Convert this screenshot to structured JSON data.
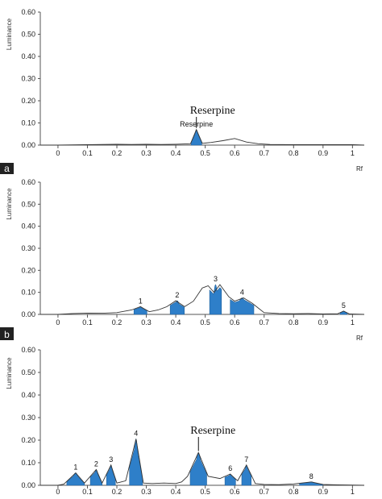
{
  "chart_data": [
    {
      "type": "area",
      "panel_label": "a",
      "xlabel": "Rf",
      "ylabel": "Luminance",
      "xlim": [
        -0.06,
        1.04
      ],
      "ylim": [
        0,
        0.6
      ],
      "x_ticks": [
        "0",
        "0.1",
        "0.2",
        "0.3",
        "0.4",
        "0.5",
        "0.6",
        "0.7",
        "0.8",
        "0.9",
        "1"
      ],
      "y_ticks": [
        "0.00",
        "0.10",
        "0.20",
        "0.30",
        "0.40",
        "0.50",
        "0.60"
      ],
      "grid": false,
      "trace": [
        [
          -0.06,
          0.0
        ],
        [
          0.0,
          0.0
        ],
        [
          0.1,
          0.002
        ],
        [
          0.15,
          0.003
        ],
        [
          0.2,
          0.004
        ],
        [
          0.25,
          0.003
        ],
        [
          0.3,
          0.004
        ],
        [
          0.35,
          0.003
        ],
        [
          0.4,
          0.004
        ],
        [
          0.45,
          0.006
        ],
        [
          0.47,
          0.07
        ],
        [
          0.49,
          0.008
        ],
        [
          0.52,
          0.012
        ],
        [
          0.56,
          0.02
        ],
        [
          0.6,
          0.03
        ],
        [
          0.64,
          0.014
        ],
        [
          0.68,
          0.006
        ],
        [
          0.72,
          0.003
        ],
        [
          0.8,
          0.002
        ],
        [
          0.9,
          0.002
        ],
        [
          1.0,
          0.002
        ],
        [
          1.04,
          0.0
        ]
      ],
      "peaks": [
        {
          "rf": 0.47,
          "height": 0.07,
          "halfwidth": 0.018,
          "label": "Reserpine"
        }
      ],
      "annotation": "Reserpine"
    },
    {
      "type": "area",
      "panel_label": "b",
      "xlabel": "Rf",
      "ylabel": "Luminance",
      "xlim": [
        -0.06,
        1.04
      ],
      "ylim": [
        0,
        0.6
      ],
      "x_ticks": [
        "0",
        "0.1",
        "0.2",
        "0.3",
        "0.4",
        "0.5",
        "0.6",
        "0.7",
        "0.8",
        "0.9",
        "1"
      ],
      "y_ticks": [
        "0.00",
        "0.10",
        "0.20",
        "0.30",
        "0.40",
        "0.50",
        "0.60"
      ],
      "grid": false,
      "trace": [
        [
          -0.06,
          0.0
        ],
        [
          0.0,
          0.0
        ],
        [
          0.05,
          0.004
        ],
        [
          0.1,
          0.006
        ],
        [
          0.15,
          0.005
        ],
        [
          0.2,
          0.008
        ],
        [
          0.25,
          0.02
        ],
        [
          0.28,
          0.035
        ],
        [
          0.31,
          0.012
        ],
        [
          0.34,
          0.02
        ],
        [
          0.37,
          0.035
        ],
        [
          0.4,
          0.062
        ],
        [
          0.43,
          0.035
        ],
        [
          0.46,
          0.06
        ],
        [
          0.49,
          0.12
        ],
        [
          0.51,
          0.13
        ],
        [
          0.53,
          0.1
        ],
        [
          0.55,
          0.135
        ],
        [
          0.58,
          0.08
        ],
        [
          0.6,
          0.06
        ],
        [
          0.63,
          0.075
        ],
        [
          0.66,
          0.05
        ],
        [
          0.7,
          0.008
        ],
        [
          0.75,
          0.004
        ],
        [
          0.8,
          0.003
        ],
        [
          0.85,
          0.004
        ],
        [
          0.9,
          0.002
        ],
        [
          0.95,
          0.003
        ],
        [
          0.97,
          0.015
        ],
        [
          0.99,
          0.002
        ],
        [
          1.04,
          0.0
        ]
      ],
      "peaks": [
        {
          "rf": 0.28,
          "height": 0.035,
          "halfwidth": 0.022,
          "label": "1"
        },
        {
          "rf": 0.405,
          "height": 0.062,
          "halfwidth": 0.024,
          "label": "2"
        },
        {
          "rf": 0.535,
          "height": 0.135,
          "halfwidth": 0.02,
          "label": "3"
        },
        {
          "rf": 0.625,
          "height": 0.075,
          "halfwidth": 0.04,
          "label": "4"
        },
        {
          "rf": 0.97,
          "height": 0.015,
          "halfwidth": 0.012,
          "label": "5"
        }
      ],
      "annotation": ""
    },
    {
      "type": "area",
      "panel_label": "",
      "xlabel": "",
      "ylabel": "Luminance",
      "xlim": [
        -0.06,
        1.04
      ],
      "ylim": [
        0,
        0.6
      ],
      "x_ticks": [
        "0",
        "0.1",
        "0.2",
        "0.3",
        "0.4",
        "0.5",
        "0.6",
        "0.7",
        "0.8",
        "0.9",
        "1"
      ],
      "y_ticks": [
        "0.00",
        "0.10",
        "0.20",
        "0.30",
        "0.40",
        "0.50",
        "0.60"
      ],
      "grid": false,
      "trace": [
        [
          -0.06,
          0.0
        ],
        [
          0.0,
          0.0
        ],
        [
          0.02,
          0.005
        ],
        [
          0.06,
          0.055
        ],
        [
          0.09,
          0.01
        ],
        [
          0.13,
          0.07
        ],
        [
          0.15,
          0.01
        ],
        [
          0.18,
          0.09
        ],
        [
          0.2,
          0.01
        ],
        [
          0.23,
          0.02
        ],
        [
          0.265,
          0.205
        ],
        [
          0.29,
          0.01
        ],
        [
          0.32,
          0.008
        ],
        [
          0.36,
          0.01
        ],
        [
          0.4,
          0.008
        ],
        [
          0.42,
          0.015
        ],
        [
          0.44,
          0.04
        ],
        [
          0.477,
          0.145
        ],
        [
          0.51,
          0.04
        ],
        [
          0.55,
          0.03
        ],
        [
          0.585,
          0.05
        ],
        [
          0.61,
          0.02
        ],
        [
          0.64,
          0.09
        ],
        [
          0.67,
          0.008
        ],
        [
          0.7,
          0.004
        ],
        [
          0.75,
          0.003
        ],
        [
          0.8,
          0.006
        ],
        [
          0.86,
          0.015
        ],
        [
          0.9,
          0.004
        ],
        [
          0.95,
          0.002
        ],
        [
          1.04,
          0.0
        ]
      ],
      "peaks": [
        {
          "rf": 0.06,
          "height": 0.055,
          "halfwidth": 0.03,
          "label": "1"
        },
        {
          "rf": 0.13,
          "height": 0.07,
          "halfwidth": 0.02,
          "label": "2"
        },
        {
          "rf": 0.18,
          "height": 0.09,
          "halfwidth": 0.015,
          "label": "3"
        },
        {
          "rf": 0.265,
          "height": 0.205,
          "halfwidth": 0.022,
          "label": "4"
        },
        {
          "rf": 0.477,
          "height": 0.145,
          "halfwidth": 0.028,
          "label": ""
        },
        {
          "rf": 0.585,
          "height": 0.05,
          "halfwidth": 0.018,
          "label": "6"
        },
        {
          "rf": 0.64,
          "height": 0.09,
          "halfwidth": 0.016,
          "label": "7"
        },
        {
          "rf": 0.86,
          "height": 0.015,
          "halfwidth": 0.04,
          "label": "8"
        }
      ],
      "annotation": "Reserpine"
    }
  ],
  "colors": {
    "peak_fill": "#2e7fc9",
    "trace": "#333333",
    "tag_bg": "#222222"
  }
}
